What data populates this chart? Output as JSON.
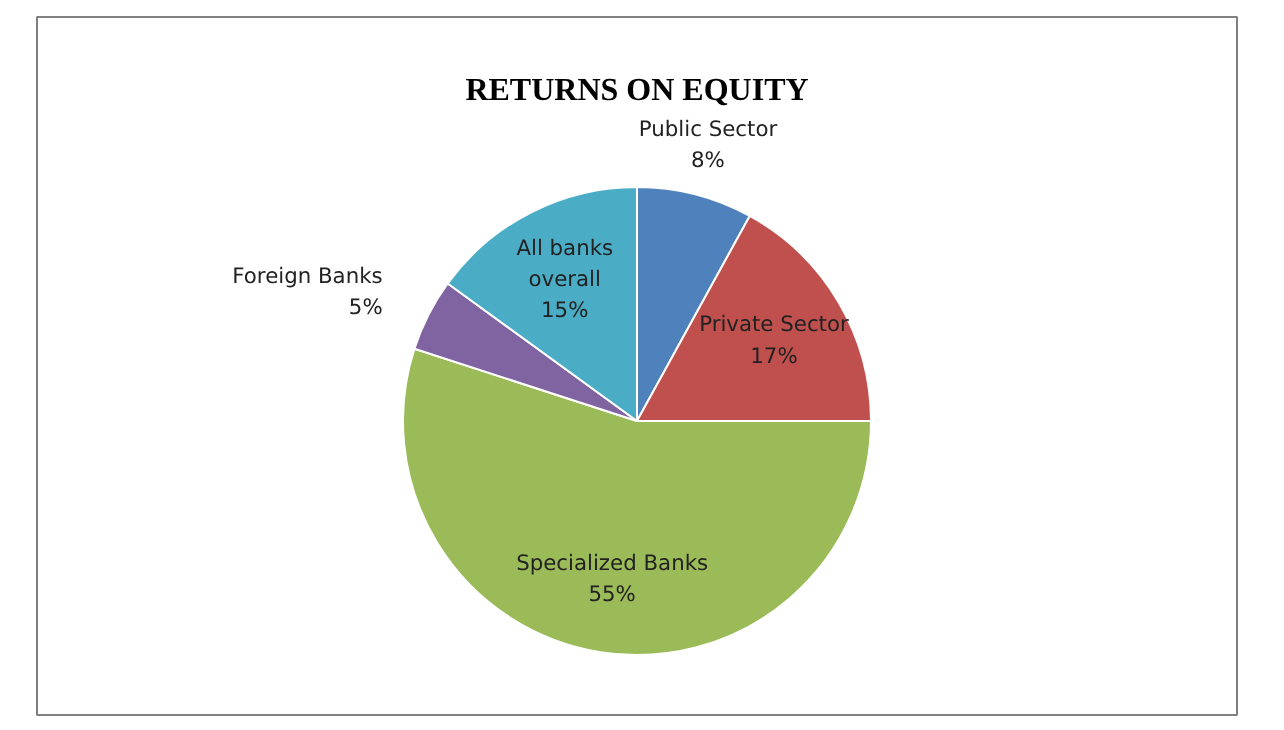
{
  "chart_data": {
    "type": "pie",
    "title": "RETURNS ON EQUITY",
    "categories": [
      "Public Sector",
      "Private Sector",
      "Specialized Banks",
      "Foreign Banks",
      "All banks overall"
    ],
    "values": [
      8,
      17,
      55,
      5,
      15
    ],
    "colors": [
      "#4f81bd",
      "#c0504d",
      "#9bbb59",
      "#8064a2",
      "#4bacc6"
    ],
    "value_labels": [
      "8%",
      "17%",
      "55%",
      "5%",
      "15%"
    ]
  }
}
